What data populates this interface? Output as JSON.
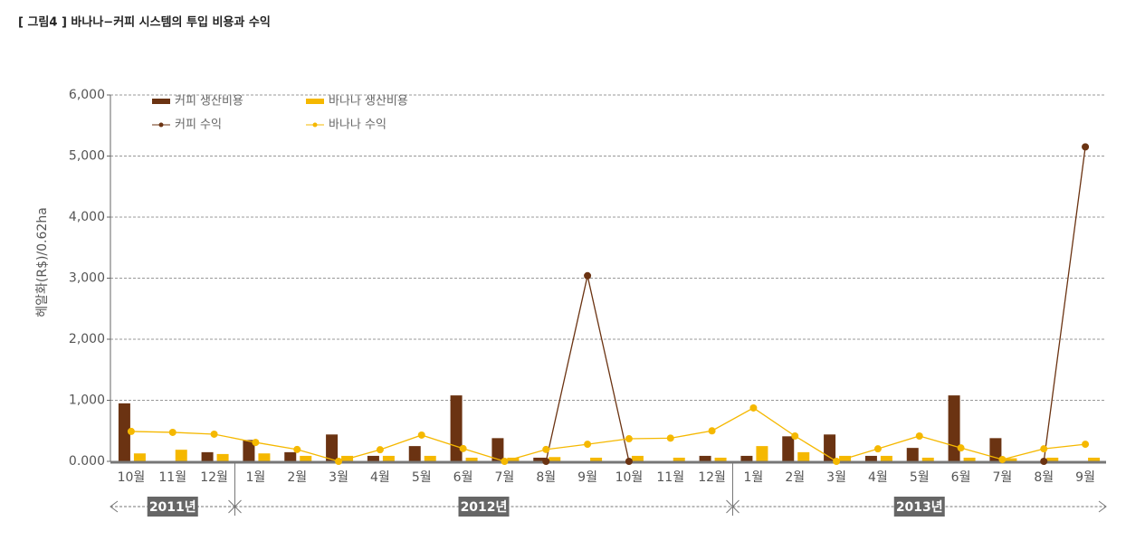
{
  "chart_data": {
    "type": "bar_line",
    "title": "[ 그림4 ] 바나나−커피 시스템의 투입 비용과 수익",
    "y_label": "헤알화(R$)/0.62ha",
    "categories": [
      "10월",
      "11월",
      "12월",
      "1월",
      "2월",
      "3월",
      "4월",
      "5월",
      "6월",
      "7월",
      "8월",
      "9월",
      "10월",
      "11월",
      "12월",
      "1월",
      "2월",
      "3월",
      "4월",
      "5월",
      "6월",
      "7월",
      "8월",
      "9월"
    ],
    "x_groups": [
      {
        "label": "2011년",
        "span": 3
      },
      {
        "label": "2012년",
        "span": 12
      },
      {
        "label": "2013년",
        "span": 9
      }
    ],
    "series": [
      {
        "name": "커피 생산비용",
        "kind": "bar",
        "color": "#6b3312",
        "values": [
          950,
          0,
          150,
          350,
          150,
          440,
          90,
          250,
          1080,
          380,
          60,
          0,
          0,
          0,
          90,
          90,
          410,
          440,
          90,
          220,
          1080,
          380,
          0,
          0
        ]
      },
      {
        "name": "바나나 생산비용",
        "kind": "bar",
        "color": "#f5b800",
        "values": [
          130,
          190,
          120,
          130,
          90,
          90,
          90,
          90,
          60,
          60,
          70,
          60,
          90,
          60,
          60,
          250,
          150,
          90,
          90,
          60,
          60,
          50,
          60,
          60
        ]
      },
      {
        "name": "커피 수익",
        "kind": "line",
        "color": "#6b3312",
        "values": [
          null,
          null,
          null,
          null,
          null,
          null,
          null,
          null,
          null,
          null,
          0,
          3040,
          0,
          null,
          null,
          null,
          null,
          null,
          null,
          null,
          null,
          null,
          0,
          5150
        ]
      },
      {
        "name": "바나나 수익",
        "kind": "line",
        "color": "#f5b800",
        "values": [
          490,
          475,
          445,
          310,
          195,
          0,
          190,
          430,
          210,
          0,
          195,
          280,
          370,
          380,
          500,
          875,
          415,
          0,
          205,
          415,
          220,
          30,
          205,
          280
        ]
      }
    ],
    "ylim": [
      0,
      6000
    ],
    "yticks": [
      {
        "value": 0,
        "label": "0.000"
      },
      {
        "value": 1000,
        "label": "1,000"
      },
      {
        "value": 2000,
        "label": "2,000"
      },
      {
        "value": 3000,
        "label": "3,000"
      },
      {
        "value": 4000,
        "label": "4,000"
      },
      {
        "value": 5000,
        "label": "5,000"
      },
      {
        "value": 6000,
        "label": "6,000"
      }
    ],
    "grid": true
  }
}
